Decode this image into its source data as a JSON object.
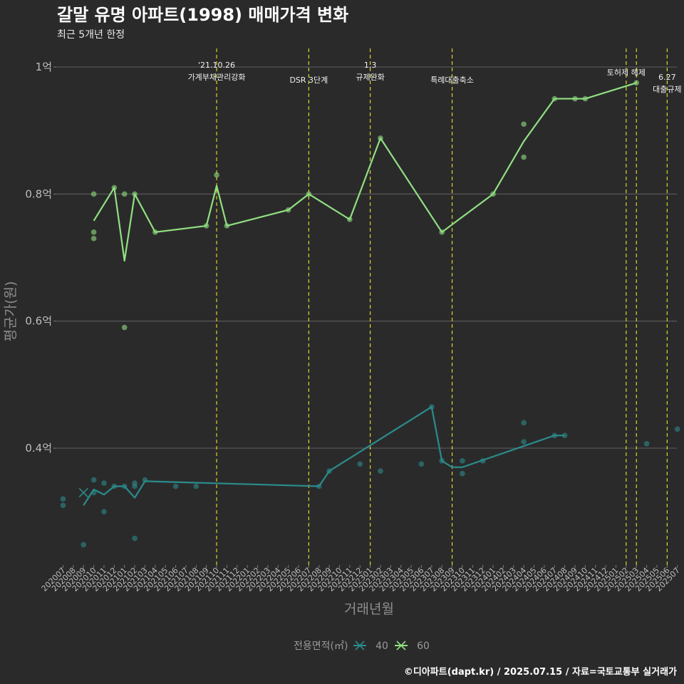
{
  "chart_data": {
    "type": "line",
    "title": "갈말 유명 아파트(1998) 매매가격 변화",
    "subtitle": "최근 5개년 한정",
    "xlabel": "거래년월",
    "ylabel": "평균가(원)",
    "caption": "©디아파트(dapt.kr) / 2025.07.15 / 자료=국토교통부 실거래가",
    "y_ticks": [
      {
        "value": 0.4,
        "label": "0.4억"
      },
      {
        "value": 0.6,
        "label": "0.6억"
      },
      {
        "value": 0.8,
        "label": "0.8억"
      },
      {
        "value": 1.0,
        "label": "1억"
      }
    ],
    "ylim": [
      0.21,
      1.025
    ],
    "categories": [
      "202007",
      "202008",
      "202009",
      "202010",
      "202011",
      "202012",
      "202101",
      "202102",
      "202103",
      "202104",
      "202105",
      "202106",
      "202107",
      "202108",
      "202109",
      "202110",
      "202111",
      "202112",
      "202201",
      "202202",
      "202203",
      "202204",
      "202205",
      "202206",
      "202207",
      "202208",
      "202209",
      "202210",
      "202211",
      "202212",
      "202301",
      "202302",
      "202303",
      "202304",
      "202305",
      "202306",
      "202307",
      "202308",
      "202309",
      "202310",
      "202311",
      "202312",
      "202401",
      "202402",
      "202403",
      "202404",
      "202405",
      "202406",
      "202407",
      "202408",
      "202409",
      "202410",
      "202411",
      "202412",
      "202501",
      "202502",
      "202503",
      "202504",
      "202505",
      "202506",
      "202507"
    ],
    "legend": {
      "title": "전용면적(㎡)",
      "items": [
        {
          "label": "40",
          "color": "#2a8c8c"
        },
        {
          "label": "60",
          "color": "#90e080"
        }
      ]
    },
    "annotations": [
      {
        "category": "202110",
        "lines": [
          "'21.10.26",
          "가계부채관리강화"
        ],
        "level": 0
      },
      {
        "category": "202207",
        "lines": [
          "DSR 3단계"
        ],
        "level": 1
      },
      {
        "category": "202301",
        "lines": [
          "1.3",
          "규제완화"
        ],
        "level": 0
      },
      {
        "category": "202309",
        "lines": [
          "특례대출축소"
        ],
        "level": 1
      },
      {
        "category": "202502",
        "lines": [
          "토허제 해제"
        ],
        "level": 0.5
      },
      {
        "category": "202503",
        "lines": [],
        "level": 0
      },
      {
        "category": "202506",
        "lines": [
          "6.27",
          "대출규제"
        ],
        "level": 0.8
      }
    ],
    "series": [
      {
        "name": "40",
        "color": "#2a8c8c",
        "line": [
          {
            "x": "202009",
            "y": 0.31
          },
          {
            "x": "202010",
            "y": 0.335
          },
          {
            "x": "202011",
            "y": 0.327
          },
          {
            "x": "202012",
            "y": 0.34
          },
          {
            "x": "202101",
            "y": 0.34
          },
          {
            "x": "202102",
            "y": 0.322
          },
          {
            "x": "202103",
            "y": 0.348
          },
          {
            "x": "202208",
            "y": 0.34
          },
          {
            "x": "202209",
            "y": 0.364
          },
          {
            "x": "202307",
            "y": 0.465
          },
          {
            "x": "202308",
            "y": 0.38
          },
          {
            "x": "202309",
            "y": 0.37
          },
          {
            "x": "202310",
            "y": 0.37
          },
          {
            "x": "202407",
            "y": 0.42
          },
          {
            "x": "202408",
            "y": 0.42
          }
        ],
        "points": [
          {
            "x": "202007",
            "y": 0.32
          },
          {
            "x": "202007",
            "y": 0.31
          },
          {
            "x": "202009",
            "y": 0.248
          },
          {
            "x": "202010",
            "y": 0.35
          },
          {
            "x": "202010",
            "y": 0.33
          },
          {
            "x": "202011",
            "y": 0.345
          },
          {
            "x": "202011",
            "y": 0.3
          },
          {
            "x": "202012",
            "y": 0.34
          },
          {
            "x": "202101",
            "y": 0.34
          },
          {
            "x": "202102",
            "y": 0.345
          },
          {
            "x": "202102",
            "y": 0.34
          },
          {
            "x": "202102",
            "y": 0.258
          },
          {
            "x": "202103",
            "y": 0.35
          },
          {
            "x": "202106",
            "y": 0.34
          },
          {
            "x": "202108",
            "y": 0.34
          },
          {
            "x": "202208",
            "y": 0.34
          },
          {
            "x": "202209",
            "y": 0.364
          },
          {
            "x": "202212",
            "y": 0.375
          },
          {
            "x": "202302",
            "y": 0.364
          },
          {
            "x": "202306",
            "y": 0.375
          },
          {
            "x": "202307",
            "y": 0.465
          },
          {
            "x": "202308",
            "y": 0.38
          },
          {
            "x": "202310",
            "y": 0.38
          },
          {
            "x": "202310",
            "y": 0.36
          },
          {
            "x": "202312",
            "y": 0.38
          },
          {
            "x": "202404",
            "y": 0.44
          },
          {
            "x": "202404",
            "y": 0.41
          },
          {
            "x": "202407",
            "y": 0.42
          },
          {
            "x": "202408",
            "y": 0.42
          },
          {
            "x": "202504",
            "y": 0.407
          },
          {
            "x": "202507",
            "y": 0.43
          }
        ]
      },
      {
        "name": "60",
        "color": "#90e080",
        "line": [
          {
            "x": "202010",
            "y": 0.758
          },
          {
            "x": "202012",
            "y": 0.81
          },
          {
            "x": "202101",
            "y": 0.695
          },
          {
            "x": "202102",
            "y": 0.8
          },
          {
            "x": "202104",
            "y": 0.74
          },
          {
            "x": "202109",
            "y": 0.75
          },
          {
            "x": "202110",
            "y": 0.813
          },
          {
            "x": "202111",
            "y": 0.75
          },
          {
            "x": "202205",
            "y": 0.775
          },
          {
            "x": "202207",
            "y": 0.8
          },
          {
            "x": "202211",
            "y": 0.76
          },
          {
            "x": "202302",
            "y": 0.888
          },
          {
            "x": "202308",
            "y": 0.74
          },
          {
            "x": "202401",
            "y": 0.8
          },
          {
            "x": "202404",
            "y": 0.883
          },
          {
            "x": "202407",
            "y": 0.95
          },
          {
            "x": "202410",
            "y": 0.95
          },
          {
            "x": "202503",
            "y": 0.975
          }
        ],
        "points": [
          {
            "x": "202010",
            "y": 0.8
          },
          {
            "x": "202010",
            "y": 0.74
          },
          {
            "x": "202010",
            "y": 0.73
          },
          {
            "x": "202012",
            "y": 0.81
          },
          {
            "x": "202101",
            "y": 0.8
          },
          {
            "x": "202101",
            "y": 0.59
          },
          {
            "x": "202102",
            "y": 0.8
          },
          {
            "x": "202104",
            "y": 0.74
          },
          {
            "x": "202109",
            "y": 0.75
          },
          {
            "x": "202110",
            "y": 0.83
          },
          {
            "x": "202111",
            "y": 0.75
          },
          {
            "x": "202205",
            "y": 0.775
          },
          {
            "x": "202207",
            "y": 0.8
          },
          {
            "x": "202211",
            "y": 0.76
          },
          {
            "x": "202302",
            "y": 0.888
          },
          {
            "x": "202308",
            "y": 0.74
          },
          {
            "x": "202401",
            "y": 0.8
          },
          {
            "x": "202404",
            "y": 0.91
          },
          {
            "x": "202404",
            "y": 0.858
          },
          {
            "x": "202407",
            "y": 0.95
          },
          {
            "x": "202409",
            "y": 0.95
          },
          {
            "x": "202410",
            "y": 0.95
          },
          {
            "x": "202503",
            "y": 0.975
          }
        ]
      }
    ]
  }
}
